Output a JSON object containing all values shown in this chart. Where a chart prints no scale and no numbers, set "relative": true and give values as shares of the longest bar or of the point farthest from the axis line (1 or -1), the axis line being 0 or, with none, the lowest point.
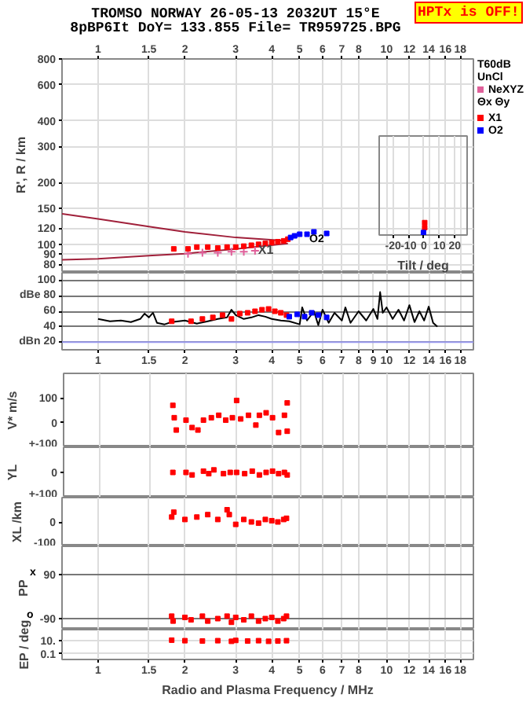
{
  "chart_data": [
    {
      "type": "scatter",
      "title": "TROMSO NORWAY 26-05-13 2032UT 15°E",
      "subtitle": "8pBP6It DoY= 133.855 File= TR959725.BPG",
      "ylabel": "R', R / km",
      "log": "xy",
      "xlim": [
        0.75,
        20
      ],
      "ylim": [
        74,
        800
      ],
      "xticks": [
        1,
        1.5,
        2,
        3,
        4,
        5,
        6,
        7,
        8,
        10,
        12,
        14,
        16,
        18
      ],
      "yticks": [
        80,
        90,
        100,
        120,
        150,
        200,
        300,
        400,
        600,
        800
      ],
      "grid": true,
      "marker": "square",
      "legend": "right",
      "annotations": [
        "HPTx is OFF!",
        "T60dB",
        "UnCl",
        "Θx Θy",
        {
          "text": "X1",
          "x": 3.5,
          "y": 93
        },
        "O2"
      ],
      "series": [
        {
          "name": "NeXYZ",
          "color": "#e0609a",
          "marker": "cross",
          "x": [
            2.05,
            2.3,
            2.6,
            2.9,
            3.2,
            3.5
          ],
          "values": [
            90,
            91,
            91,
            92,
            92,
            93
          ]
        },
        {
          "name": "X1",
          "color": "#ff0000",
          "x": [
            1.83,
            2.05,
            2.2,
            2.4,
            2.6,
            2.8,
            3.0,
            3.2,
            3.4,
            3.6,
            3.8,
            4.0,
            4.2,
            4.4,
            4.55
          ],
          "values": [
            95,
            95,
            97,
            97,
            96,
            97,
            97,
            98,
            99,
            100,
            101,
            102,
            103,
            104,
            106
          ]
        },
        {
          "name": "O2",
          "color": "#0000ff",
          "x": [
            4.65,
            4.8,
            5.0,
            5.3,
            5.6,
            6.2
          ],
          "values": [
            108,
            110,
            112,
            112,
            115,
            113
          ]
        },
        {
          "type": "line",
          "marker": "none",
          "color": "#a0203a",
          "x": [
            0.75,
            1,
            1.5,
            2,
            3,
            4.55
          ],
          "values": [
            141,
            133,
            122,
            115,
            108,
            104
          ]
        },
        {
          "type": "line",
          "marker": "none",
          "color": "#a0203a",
          "x": [
            0.75,
            1,
            1.5,
            2,
            3,
            4.55
          ],
          "values": [
            84,
            85,
            88,
            90,
            95,
            101
          ]
        }
      ]
    },
    {
      "type": "scatter",
      "xlabel": "Tilt / deg",
      "xlim": [
        -29,
        28
      ],
      "relative": true,
      "xticks": [
        -20,
        -10,
        0,
        10,
        20
      ],
      "tick_labels": "x",
      "grid": "x",
      "marker": "square",
      "series": [
        {
          "color": "#ff0000",
          "x": [
            0.5,
            0.5
          ],
          "values": [
            1,
            0.6
          ]
        },
        {
          "color": "#0000ff",
          "x": [
            -0.3
          ],
          "values": [
            0.2
          ]
        }
      ]
    },
    {
      "type": "scatter",
      "log": "x",
      "xlim": [
        0.75,
        20
      ],
      "ylim": [
        10,
        110
      ],
      "xticks": [
        1,
        1.5,
        2,
        3,
        4,
        5,
        6,
        7,
        8,
        9,
        10,
        12,
        14,
        16,
        18
      ],
      "yticks": [
        100,
        {
          "value": 80,
          "label": "dBe 80"
        },
        60,
        40,
        {
          "value": 20,
          "label": "dBn 20"
        }
      ],
      "grid": true,
      "marker": "square",
      "ref_lines": [
        {
          "axis": "y",
          "value": 20,
          "color": "#9999ee"
        }
      ],
      "series": [
        {
          "type": "line",
          "marker": "none",
          "color": "#000000",
          "x": [
            1.0,
            1.1,
            1.2,
            1.3,
            1.4,
            1.45,
            1.5,
            1.55,
            1.6,
            1.7,
            1.8,
            1.9,
            2.0,
            2.1,
            2.2,
            2.4,
            2.6,
            2.8,
            2.9,
            3.0,
            3.2,
            3.4,
            3.6,
            3.8,
            4.0,
            4.3,
            4.6,
            5.0,
            5.1,
            5.3,
            5.6,
            5.8,
            6.0,
            6.3,
            6.6,
            7.0,
            7.2,
            7.5,
            8.0,
            8.5,
            9.0,
            9.3,
            9.5,
            9.7,
            10,
            10.5,
            11,
            11.5,
            12,
            12.5,
            13,
            13.5,
            14,
            14.5,
            15
          ],
          "values": [
            50,
            47,
            48,
            46,
            50,
            57,
            52,
            58,
            45,
            43,
            46,
            47,
            48,
            46,
            44,
            47,
            50,
            52,
            62,
            55,
            50,
            52,
            55,
            53,
            50,
            48,
            47,
            43,
            65,
            48,
            60,
            42,
            62,
            45,
            58,
            48,
            65,
            45,
            60,
            48,
            63,
            50,
            85,
            58,
            65,
            50,
            62,
            48,
            68,
            46,
            60,
            48,
            66,
            45,
            40
          ]
        },
        {
          "color": "#ff0000",
          "x": [
            1.8,
            2.1,
            2.3,
            2.5,
            2.7,
            2.9,
            3.1,
            3.3,
            3.5,
            3.7,
            3.9,
            4.1,
            4.3,
            4.5
          ],
          "values": [
            47,
            47,
            50,
            52,
            55,
            50,
            57,
            58,
            60,
            62,
            63,
            60,
            58,
            55
          ]
        },
        {
          "color": "#0000ff",
          "x": [
            4.6,
            4.9,
            5.2,
            5.5,
            5.8,
            6.2
          ],
          "values": [
            53,
            56,
            53,
            58,
            55,
            52
          ]
        }
      ]
    },
    {
      "type": "scatter",
      "ylabel": "V* m/s",
      "log": "x",
      "xlim": [
        0.75,
        20
      ],
      "ylim": [
        -100,
        200
      ],
      "xticks": [
        1,
        1.5,
        2,
        3,
        4,
        5,
        6,
        7,
        8,
        10,
        12,
        14,
        16,
        18
      ],
      "yticks": [
        100,
        0,
        {
          "value": -100,
          "label": "+-100"
        }
      ],
      "tick_labels": "y",
      "grid": "x",
      "marker": "square",
      "series": [
        {
          "color": "#ff0000",
          "x": [
            1.8,
            1.82,
            1.85,
            2.0,
            2.1,
            2.2,
            2.3,
            2.45,
            2.6,
            2.75,
            2.9,
            3.0,
            3.1,
            3.3,
            3.5,
            3.6,
            3.8,
            4.0,
            4.2,
            4.4,
            4.5,
            4.5
          ],
          "values": [
            70,
            20,
            -30,
            10,
            -20,
            -30,
            10,
            20,
            30,
            10,
            20,
            90,
            15,
            30,
            -10,
            30,
            40,
            20,
            -40,
            30,
            80,
            -35
          ]
        }
      ]
    },
    {
      "type": "scatter",
      "ylabel": "YL",
      "log": "x",
      "xlim": [
        0.75,
        20
      ],
      "ylim": [
        -100,
        100
      ],
      "xticks": [
        1,
        1.5,
        2,
        3,
        4,
        5,
        6,
        7,
        8,
        10,
        12,
        14,
        16,
        18
      ],
      "yticks": [
        0,
        {
          "value": -100,
          "label": "+-100"
        }
      ],
      "tick_labels": "y",
      "grid": "x",
      "marker": "square",
      "series": [
        {
          "color": "#ff0000",
          "x": [
            1.8,
            2.0,
            2.1,
            2.3,
            2.4,
            2.5,
            2.7,
            2.85,
            3.0,
            3.2,
            3.4,
            3.6,
            3.8,
            4.0,
            4.2,
            4.4,
            4.5
          ],
          "values": [
            0,
            0,
            -10,
            5,
            -5,
            10,
            -5,
            0,
            0,
            -5,
            5,
            -10,
            0,
            5,
            -5,
            0,
            -10
          ]
        }
      ]
    },
    {
      "type": "scatter",
      "ylabel": "XL /km",
      "log": "x",
      "xlim": [
        0.75,
        20
      ],
      "ylim": [
        -100,
        100
      ],
      "xticks": [
        1,
        1.5,
        2,
        3,
        4,
        5,
        6,
        7,
        8,
        10,
        12,
        14,
        16,
        18
      ],
      "yticks": [
        0,
        -100
      ],
      "tick_labels": "y",
      "grid": "x",
      "marker": "square",
      "series": [
        {
          "color": "#ff0000",
          "x": [
            1.8,
            1.83,
            2.0,
            2.2,
            2.4,
            2.6,
            2.8,
            2.85,
            3.0,
            3.2,
            3.4,
            3.6,
            3.8,
            4.0,
            4.2,
            4.4,
            4.5
          ],
          "values": [
            20,
            40,
            10,
            20,
            30,
            10,
            50,
            30,
            -10,
            10,
            0,
            -5,
            10,
            5,
            0,
            10,
            15
          ]
        }
      ]
    },
    {
      "type": "scatter",
      "ylabel": "PP",
      "log": "x",
      "xlim": [
        0.75,
        20
      ],
      "ylim": [
        -135,
        206
      ],
      "xticks": [
        1,
        1.5,
        2,
        3,
        4,
        5,
        6,
        7,
        8,
        10,
        12,
        14,
        16,
        18
      ],
      "yticks": [
        90,
        -90
      ],
      "annotations": [
        "x",
        "o"
      ],
      "tick_labels": "y",
      "grid": true,
      "marker": "square",
      "series": [
        {
          "color": "#ff0000",
          "x": [
            1.8,
            1.82,
            2.0,
            2.1,
            2.3,
            2.4,
            2.6,
            2.8,
            2.9,
            3.0,
            3.2,
            3.4,
            3.6,
            3.8,
            4.0,
            4.2,
            4.4,
            4.5
          ],
          "values": [
            -80,
            -100,
            -85,
            -95,
            -80,
            -100,
            -90,
            -80,
            -105,
            -85,
            -95,
            -80,
            -100,
            -90,
            -85,
            -100,
            -90,
            -80
          ]
        }
      ]
    },
    {
      "type": "scatter",
      "ylabel": "EP / deg",
      "xlabel": "Radio and Plasma Frequency / MHz",
      "log": "xy",
      "xlim": [
        0.75,
        20
      ],
      "ylim": [
        0.013,
        500
      ],
      "xticks": [
        1,
        1.5,
        2,
        3,
        4,
        5,
        6,
        7,
        8,
        10,
        12,
        14,
        16,
        18
      ],
      "yticks": [
        {
          "value": 10,
          "label": "10."
        },
        0.1
      ],
      "grid": true,
      "marker": "square",
      "series": [
        {
          "color": "#ff0000",
          "x": [
            1.8,
            2.0,
            2.3,
            2.6,
            2.9,
            3.0,
            3.3,
            3.6,
            3.9,
            4.2,
            4.5
          ],
          "values": [
            12,
            10,
            9,
            10,
            8,
            11,
            9,
            10,
            8,
            9,
            10
          ]
        }
      ]
    }
  ]
}
